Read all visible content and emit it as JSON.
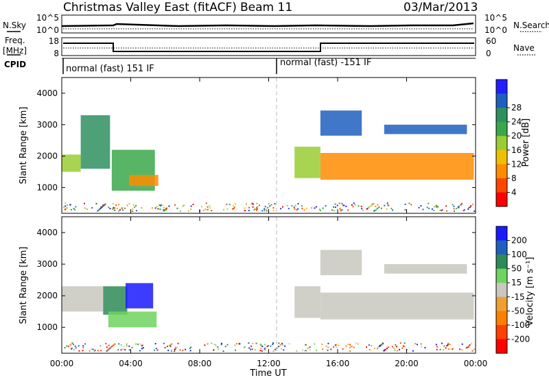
{
  "header": {
    "station": "Christmas Valley East (fitACF)",
    "beam": "Beam 11",
    "date": "03/Mar/2013"
  },
  "labels": {
    "nsky": "N.Sky",
    "nsearch": "N.Search",
    "freq_line1": "Freq.",
    "freq_line2": "[MHz]",
    "nave": "Nave",
    "cpid": "CPID",
    "xlabel": "Time UT",
    "ylabel": "Slant Range [km]",
    "power_cbar": "Power [dB]",
    "velocity_cbar": "Velocity [m s⁻¹]"
  },
  "noise_panel": {
    "left_ticks": [
      "10^5",
      "10^0"
    ],
    "right_ticks": [
      "10^5",
      "10^0"
    ]
  },
  "freq_panel": {
    "left_ticks": [
      "18",
      "8"
    ],
    "right_ticks": [
      "60",
      "0"
    ]
  },
  "cpid_panel": {
    "modes": [
      {
        "label": "normal (fast) 151 IF",
        "start_hour": 0
      },
      {
        "label": "normal (fast) -151 IF",
        "start_hour": 12.6
      }
    ]
  },
  "chart_data": [
    {
      "type": "heatmap",
      "name": "Power",
      "x_range_hours": [
        0,
        24
      ],
      "ylim": [
        180,
        4500
      ],
      "y_ticks": [
        1000,
        2000,
        3000,
        4000
      ],
      "x_ticks": [
        "00:00",
        "04:00",
        "08:00",
        "12:00",
        "16:00",
        "20:00",
        "00:00"
      ],
      "colorbar_ticks": [
        "4",
        "8",
        "12",
        "16",
        "20",
        "24",
        "28"
      ],
      "colorbar_colors": [
        "#2020ff",
        "#1f5fbf",
        "#2f8f5f",
        "#3aa84a",
        "#9acd32",
        "#f0c000",
        "#ff8c00",
        "#ff4500",
        "#ff0000"
      ],
      "regions": [
        {
          "t": [
            0.0,
            1.1
          ],
          "r": [
            1500,
            2050
          ],
          "level": 4
        },
        {
          "t": [
            1.1,
            2.8
          ],
          "r": [
            1600,
            3300
          ],
          "level": 2
        },
        {
          "t": [
            2.9,
            5.4
          ],
          "r": [
            900,
            2200
          ],
          "level": 3
        },
        {
          "t": [
            3.9,
            5.6
          ],
          "r": [
            1050,
            1400
          ],
          "level": 6
        },
        {
          "t": [
            13.5,
            15.0
          ],
          "r": [
            1300,
            2300
          ],
          "level": 4
        },
        {
          "t": [
            15.0,
            23.9
          ],
          "r": [
            1250,
            2100
          ],
          "level": 6
        },
        {
          "t": [
            15.0,
            17.4
          ],
          "r": [
            2650,
            3450
          ],
          "level": 1
        },
        {
          "t": [
            18.7,
            23.5
          ],
          "r": [
            2700,
            3000
          ],
          "level": 1
        }
      ]
    },
    {
      "type": "heatmap",
      "name": "Velocity",
      "x_range_hours": [
        0,
        24
      ],
      "ylim": [
        180,
        4500
      ],
      "y_ticks": [
        1000,
        2000,
        3000,
        4000
      ],
      "x_ticks": [
        "00:00",
        "04:00",
        "08:00",
        "12:00",
        "16:00",
        "20:00",
        "00:00"
      ],
      "xlabel": "Time UT",
      "colorbar_ticks": [
        "200",
        "100",
        "50",
        "15",
        "-15",
        "-50",
        "-100",
        "-200"
      ],
      "colorbar_colors": [
        "#1a1aff",
        "#1f5fbf",
        "#2e8b57",
        "#6fd35f",
        "#c8c8c0",
        "#f0a030",
        "#ff7f00",
        "#ff4000",
        "#ff0000"
      ],
      "regions": [
        {
          "t": [
            0.0,
            2.4
          ],
          "r": [
            1500,
            2300
          ],
          "level": 4
        },
        {
          "t": [
            2.4,
            3.8
          ],
          "r": [
            1400,
            2300
          ],
          "level": 2
        },
        {
          "t": [
            3.7,
            5.3
          ],
          "r": [
            1600,
            2400
          ],
          "level": 0
        },
        {
          "t": [
            2.7,
            5.5
          ],
          "r": [
            1000,
            1500
          ],
          "level": 3
        },
        {
          "t": [
            13.5,
            15.0
          ],
          "r": [
            1300,
            2300
          ],
          "level": 4
        },
        {
          "t": [
            15.0,
            23.9
          ],
          "r": [
            1250,
            2100
          ],
          "level": 4
        },
        {
          "t": [
            15.0,
            17.4
          ],
          "r": [
            2650,
            3450
          ],
          "level": 4
        },
        {
          "t": [
            18.7,
            23.5
          ],
          "r": [
            2700,
            3000
          ],
          "level": 4
        }
      ]
    }
  ]
}
